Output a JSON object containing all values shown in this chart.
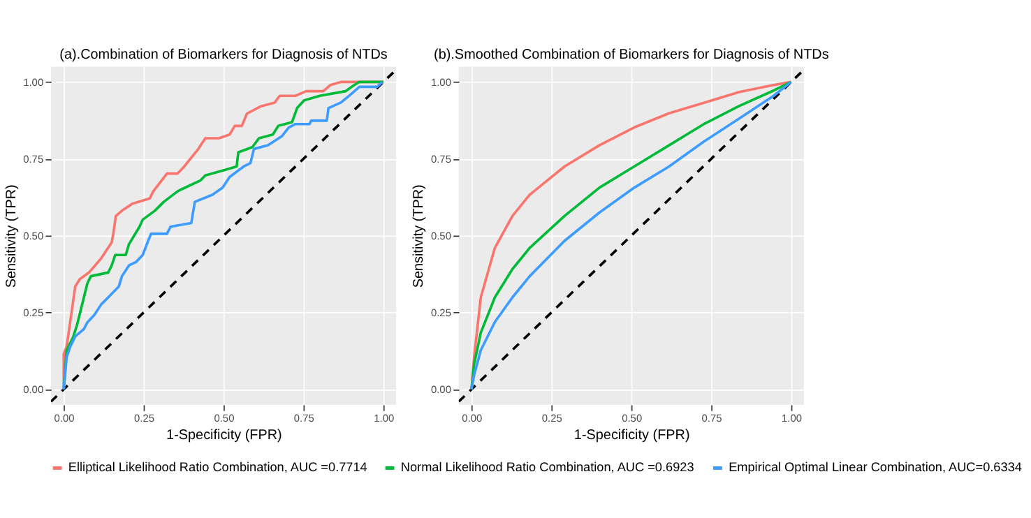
{
  "chart_data": [
    {
      "type": "line",
      "title": "(a).Combination of Biomarkers for Diagnosis of NTDs",
      "xlabel": "1-Specificity (FPR)",
      "ylabel": "Sensitivity (TPR)",
      "xlim": [
        -0.04,
        1.04
      ],
      "ylim": [
        -0.05,
        1.05
      ],
      "xticks": [
        {
          "value": 0,
          "label": "0.00"
        },
        {
          "value": 0.25,
          "label": "0.25"
        },
        {
          "value": 0.5,
          "label": "0.50"
        },
        {
          "value": 0.75,
          "label": "0.75"
        },
        {
          "value": 1,
          "label": "1.00"
        }
      ],
      "yticks": [
        {
          "value": 0,
          "label": "0.00"
        },
        {
          "value": 0.25,
          "label": "0.25"
        },
        {
          "value": 0.5,
          "label": "0.50"
        },
        {
          "value": 0.75,
          "label": "0.75"
        },
        {
          "value": 1,
          "label": "1.00"
        }
      ],
      "grid": true,
      "legend": "bottom",
      "series": [
        {
          "name": "Elliptical Likelihood Ratio Combination, AUC =0.7714",
          "color": "#f8766d",
          "x": [
            0,
            0,
            0.009,
            0.02,
            0.036,
            0.05,
            0.079,
            0.117,
            0.15,
            0.155,
            0.163,
            0.182,
            0.215,
            0.269,
            0.28,
            0.323,
            0.356,
            0.377,
            0.421,
            0.443,
            0.486,
            0.519,
            0.535,
            0.557,
            0.573,
            0.617,
            0.66,
            0.676,
            0.725,
            0.758,
            0.812,
            0.834,
            0.867,
            1
          ],
          "values": [
            0,
            0.115,
            0.138,
            0.218,
            0.335,
            0.358,
            0.38,
            0.426,
            0.478,
            0.506,
            0.564,
            0.581,
            0.604,
            0.621,
            0.644,
            0.702,
            0.702,
            0.725,
            0.782,
            0.817,
            0.817,
            0.829,
            0.857,
            0.857,
            0.897,
            0.921,
            0.933,
            0.955,
            0.955,
            0.97,
            0.97,
            0.99,
            1,
            1
          ]
        },
        {
          "name": "Normal Likelihood Ratio Combination, AUC =0.6923",
          "color": "#00ba38",
          "x": [
            0,
            0.009,
            0.02,
            0.03,
            0.041,
            0.052,
            0.063,
            0.074,
            0.085,
            0.139,
            0.15,
            0.161,
            0.194,
            0.204,
            0.237,
            0.247,
            0.285,
            0.313,
            0.356,
            0.367,
            0.427,
            0.443,
            0.492,
            0.541,
            0.546,
            0.59,
            0.611,
            0.654,
            0.671,
            0.714,
            0.73,
            0.752,
            0.801,
            0.882,
            0.909,
            0.925,
            1
          ],
          "values": [
            0,
            0.127,
            0.15,
            0.172,
            0.207,
            0.253,
            0.299,
            0.345,
            0.368,
            0.38,
            0.403,
            0.437,
            0.437,
            0.472,
            0.529,
            0.552,
            0.581,
            0.61,
            0.644,
            0.65,
            0.679,
            0.696,
            0.71,
            0.725,
            0.771,
            0.788,
            0.817,
            0.829,
            0.857,
            0.869,
            0.915,
            0.94,
            0.955,
            0.97,
            0.99,
            1,
            1
          ]
        },
        {
          "name": "Empirical Optimal Linear Combination, AUC=0.6334",
          "color": "#3d9cff",
          "x": [
            0,
            0.009,
            0.02,
            0.036,
            0.063,
            0.074,
            0.096,
            0.117,
            0.139,
            0.172,
            0.182,
            0.204,
            0.226,
            0.247,
            0.264,
            0.273,
            0.323,
            0.334,
            0.399,
            0.41,
            0.465,
            0.497,
            0.519,
            0.563,
            0.584,
            0.595,
            0.639,
            0.682,
            0.704,
            0.725,
            0.769,
            0.774,
            0.823,
            0.828,
            0.867,
            0.893,
            0.925,
            0.98,
            0.997
          ],
          "values": [
            0,
            0.104,
            0.138,
            0.172,
            0.196,
            0.218,
            0.242,
            0.276,
            0.299,
            0.334,
            0.368,
            0.403,
            0.414,
            0.437,
            0.483,
            0.506,
            0.506,
            0.529,
            0.541,
            0.61,
            0.633,
            0.656,
            0.691,
            0.725,
            0.736,
            0.782,
            0.794,
            0.823,
            0.852,
            0.863,
            0.863,
            0.874,
            0.874,
            0.915,
            0.933,
            0.955,
            0.984,
            0.984,
            1
          ]
        },
        {
          "color": "#000000",
          "line_style": "dashed",
          "x": [
            -0.04,
            1.04
          ],
          "values": [
            -0.04,
            1.04
          ]
        }
      ]
    },
    {
      "type": "line",
      "title": "(b).Smoothed Combination of Biomarkers for Diagnosis of NTDs",
      "xlabel": "1-Specificity (FPR)",
      "ylabel": "Sensitivity (TPR)",
      "xlim": [
        -0.04,
        1.04
      ],
      "ylim": [
        -0.05,
        1.05
      ],
      "xticks": [
        {
          "value": 0,
          "label": "0.00"
        },
        {
          "value": 0.25,
          "label": "0.25"
        },
        {
          "value": 0.5,
          "label": "0.50"
        },
        {
          "value": 0.75,
          "label": "0.75"
        },
        {
          "value": 1,
          "label": "1.00"
        }
      ],
      "yticks": [
        {
          "value": 0,
          "label": "0.00"
        },
        {
          "value": 0.25,
          "label": "0.25"
        },
        {
          "value": 0.5,
          "label": "0.50"
        },
        {
          "value": 0.75,
          "label": "0.75"
        },
        {
          "value": 1,
          "label": "1.00"
        }
      ],
      "grid": true,
      "legend": "bottom",
      "series": [
        {
          "name": "Elliptical Likelihood Ratio Combination, AUC =0.7714",
          "color": "#f8766d",
          "x": [
            0,
            0.008,
            0.029,
            0.073,
            0.128,
            0.182,
            0.291,
            0.4,
            0.509,
            0.618,
            0.727,
            0.836,
            0.945,
            1
          ],
          "values": [
            0,
            0.104,
            0.299,
            0.46,
            0.564,
            0.633,
            0.725,
            0.794,
            0.852,
            0.898,
            0.932,
            0.967,
            0.99,
            1
          ]
        },
        {
          "name": "Normal Likelihood Ratio Combination, AUC =0.6923",
          "color": "#00ba38",
          "x": [
            0,
            0.008,
            0.029,
            0.073,
            0.128,
            0.182,
            0.291,
            0.4,
            0.509,
            0.618,
            0.727,
            0.836,
            0.945,
            1
          ],
          "values": [
            0,
            0.081,
            0.184,
            0.299,
            0.391,
            0.46,
            0.564,
            0.656,
            0.725,
            0.794,
            0.863,
            0.921,
            0.972,
            1
          ]
        },
        {
          "name": "Empirical Optimal Linear Combination, AUC=0.6334",
          "color": "#3d9cff",
          "x": [
            0,
            0.008,
            0.029,
            0.073,
            0.128,
            0.182,
            0.291,
            0.4,
            0.509,
            0.618,
            0.727,
            0.836,
            0.945,
            1
          ],
          "values": [
            0,
            0.046,
            0.127,
            0.219,
            0.299,
            0.368,
            0.483,
            0.575,
            0.656,
            0.725,
            0.806,
            0.88,
            0.955,
            1
          ]
        },
        {
          "color": "#000000",
          "line_style": "dashed",
          "x": [
            -0.04,
            1.04
          ],
          "values": [
            -0.04,
            1.04
          ]
        }
      ]
    }
  ]
}
